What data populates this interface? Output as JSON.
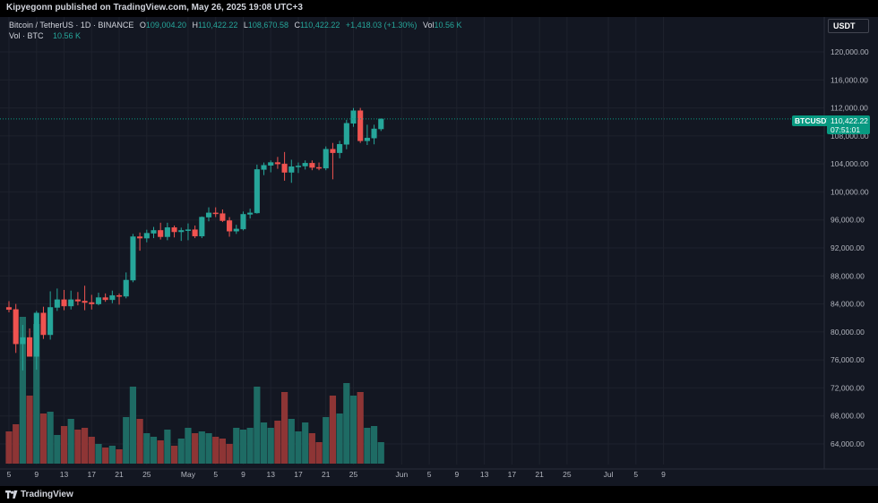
{
  "header": {
    "publish_line": "Kipyegonn published on TradingView.com, May 26, 2025 19:08 UTC+3"
  },
  "legend": {
    "symbol_title": "Bitcoin / TetherUS · 1D · BINANCE",
    "open_label": "O",
    "open_value": "109,004.20",
    "high_label": "H",
    "high_value": "110,422.22",
    "low_label": "L",
    "low_value": "108,670.58",
    "close_label": "C",
    "close_value": "110,422.22",
    "change_value": "+1,418.03 (+1.30%)",
    "vol_label": "Vol",
    "vol_value": "10.56 K",
    "vol_row_label": "Vol · BTC",
    "vol_row_value": "10.56 K"
  },
  "currency_button": "USDT",
  "last_price": {
    "symbol": "BTCUSDT",
    "price": "110,422.22",
    "countdown": "07:51:01"
  },
  "footer": {
    "logo_text": "TradingView"
  },
  "colors": {
    "background": "#131722",
    "up": "#26a69a",
    "down": "#ef5350",
    "grid": "#1e222d",
    "vol_up": "#1e6b64",
    "vol_down": "#8e3535"
  },
  "chart_data": {
    "type": "candlestick",
    "ylim": [
      60000,
      124000
    ],
    "y_ticks": [
      "120,000.00",
      "116,000.00",
      "112,000.00",
      "108,000.00",
      "104,000.00",
      "100,000.00",
      "96,000.00",
      "92,000.00",
      "88,000.00",
      "84,000.00",
      "80,000.00",
      "76,000.00",
      "72,000.00",
      "68,000.00",
      "64,000.00"
    ],
    "y_tick_values": [
      120000,
      116000,
      112000,
      108000,
      104000,
      100000,
      96000,
      92000,
      88000,
      84000,
      80000,
      76000,
      72000,
      68000,
      64000
    ],
    "x_tick_labels": [
      "5",
      "9",
      "13",
      "17",
      "21",
      "25",
      "May",
      "5",
      "9",
      "13",
      "17",
      "21",
      "25",
      "Jun",
      "5",
      "9",
      "13",
      "17",
      "21",
      "25",
      "Jul",
      "5",
      "9"
    ],
    "x_tick_day_index": [
      0,
      4,
      8,
      12,
      16,
      20,
      26,
      30,
      34,
      38,
      42,
      46,
      50,
      57,
      61,
      65,
      69,
      73,
      77,
      81,
      87,
      91,
      95
    ],
    "last_price_value": 110422.22,
    "candles": [
      {
        "o": 83500,
        "h": 84400,
        "l": 82800,
        "c": 83200,
        "v": 0.18
      },
      {
        "o": 83200,
        "h": 84000,
        "l": 77000,
        "c": 78300,
        "v": 0.22
      },
      {
        "o": 78300,
        "h": 81000,
        "l": 74500,
        "c": 79200,
        "v": 0.82
      },
      {
        "o": 79200,
        "h": 80500,
        "l": 76500,
        "c": 76500,
        "v": 0.38
      },
      {
        "o": 76500,
        "h": 83000,
        "l": 74600,
        "c": 82700,
        "v": 0.78
      },
      {
        "o": 82700,
        "h": 83600,
        "l": 79000,
        "c": 79600,
        "v": 0.28
      },
      {
        "o": 79600,
        "h": 85800,
        "l": 78900,
        "c": 83500,
        "v": 0.29
      },
      {
        "o": 83500,
        "h": 86200,
        "l": 83000,
        "c": 84600,
        "v": 0.16
      },
      {
        "o": 84600,
        "h": 86000,
        "l": 83100,
        "c": 83700,
        "v": 0.21
      },
      {
        "o": 83700,
        "h": 85900,
        "l": 83200,
        "c": 84600,
        "v": 0.25
      },
      {
        "o": 84600,
        "h": 85700,
        "l": 83800,
        "c": 84400,
        "v": 0.19
      },
      {
        "o": 84400,
        "h": 86600,
        "l": 83100,
        "c": 84200,
        "v": 0.2
      },
      {
        "o": 84200,
        "h": 85300,
        "l": 83200,
        "c": 84000,
        "v": 0.15
      },
      {
        "o": 84000,
        "h": 85600,
        "l": 83800,
        "c": 84900,
        "v": 0.11
      },
      {
        "o": 84900,
        "h": 85500,
        "l": 84300,
        "c": 84600,
        "v": 0.09
      },
      {
        "o": 84600,
        "h": 85900,
        "l": 84100,
        "c": 85200,
        "v": 0.1
      },
      {
        "o": 85200,
        "h": 85500,
        "l": 83900,
        "c": 85100,
        "v": 0.08
      },
      {
        "o": 85100,
        "h": 88500,
        "l": 84800,
        "c": 87400,
        "v": 0.26
      },
      {
        "o": 87400,
        "h": 94000,
        "l": 87100,
        "c": 93600,
        "v": 0.43
      },
      {
        "o": 93600,
        "h": 94200,
        "l": 91600,
        "c": 93400,
        "v": 0.25
      },
      {
        "o": 93400,
        "h": 94600,
        "l": 92800,
        "c": 94100,
        "v": 0.17
      },
      {
        "o": 94100,
        "h": 95000,
        "l": 93400,
        "c": 94500,
        "v": 0.15
      },
      {
        "o": 94500,
        "h": 95600,
        "l": 93200,
        "c": 93600,
        "v": 0.13
      },
      {
        "o": 93600,
        "h": 95600,
        "l": 93100,
        "c": 94900,
        "v": 0.19
      },
      {
        "o": 94900,
        "h": 95200,
        "l": 93500,
        "c": 94300,
        "v": 0.1
      },
      {
        "o": 94300,
        "h": 94900,
        "l": 93000,
        "c": 94500,
        "v": 0.14
      },
      {
        "o": 94500,
        "h": 95500,
        "l": 93100,
        "c": 94600,
        "v": 0.2
      },
      {
        "o": 94600,
        "h": 95200,
        "l": 93400,
        "c": 93700,
        "v": 0.17
      },
      {
        "o": 93700,
        "h": 96500,
        "l": 93400,
        "c": 96400,
        "v": 0.18
      },
      {
        "o": 96400,
        "h": 97800,
        "l": 95800,
        "c": 97000,
        "v": 0.17
      },
      {
        "o": 97000,
        "h": 97800,
        "l": 96400,
        "c": 96900,
        "v": 0.15
      },
      {
        "o": 96900,
        "h": 97500,
        "l": 95700,
        "c": 95900,
        "v": 0.14
      },
      {
        "o": 95900,
        "h": 96400,
        "l": 93600,
        "c": 94400,
        "v": 0.11
      },
      {
        "o": 94400,
        "h": 95300,
        "l": 94000,
        "c": 94700,
        "v": 0.2
      },
      {
        "o": 94700,
        "h": 97200,
        "l": 94500,
        "c": 96800,
        "v": 0.19
      },
      {
        "o": 96800,
        "h": 97600,
        "l": 96200,
        "c": 97000,
        "v": 0.2
      },
      {
        "o": 97000,
        "h": 103900,
        "l": 96900,
        "c": 103200,
        "v": 0.43
      },
      {
        "o": 103200,
        "h": 104200,
        "l": 102400,
        "c": 103800,
        "v": 0.23
      },
      {
        "o": 103800,
        "h": 104500,
        "l": 102800,
        "c": 104200,
        "v": 0.2
      },
      {
        "o": 104200,
        "h": 105000,
        "l": 103300,
        "c": 104000,
        "v": 0.24
      },
      {
        "o": 104000,
        "h": 105700,
        "l": 101600,
        "c": 102800,
        "v": 0.4
      },
      {
        "o": 102800,
        "h": 104600,
        "l": 101300,
        "c": 103600,
        "v": 0.25
      },
      {
        "o": 103600,
        "h": 104200,
        "l": 102700,
        "c": 103700,
        "v": 0.18
      },
      {
        "o": 103700,
        "h": 104500,
        "l": 103200,
        "c": 104100,
        "v": 0.23
      },
      {
        "o": 104100,
        "h": 104500,
        "l": 103100,
        "c": 103500,
        "v": 0.17
      },
      {
        "o": 103500,
        "h": 104200,
        "l": 103100,
        "c": 103400,
        "v": 0.12
      },
      {
        "o": 103400,
        "h": 106500,
        "l": 103100,
        "c": 106100,
        "v": 0.26
      },
      {
        "o": 106100,
        "h": 107000,
        "l": 101800,
        "c": 105600,
        "v": 0.38
      },
      {
        "o": 105600,
        "h": 107300,
        "l": 104800,
        "c": 106800,
        "v": 0.28
      },
      {
        "o": 106800,
        "h": 110300,
        "l": 106100,
        "c": 109800,
        "v": 0.45
      },
      {
        "o": 109800,
        "h": 112000,
        "l": 109300,
        "c": 111600,
        "v": 0.38
      },
      {
        "o": 111600,
        "h": 112000,
        "l": 107000,
        "c": 107300,
        "v": 0.4
      },
      {
        "o": 107300,
        "h": 109600,
        "l": 106700,
        "c": 107700,
        "v": 0.2
      },
      {
        "o": 107700,
        "h": 109600,
        "l": 106800,
        "c": 109000,
        "v": 0.21
      },
      {
        "o": 109000,
        "h": 110500,
        "l": 108700,
        "c": 110422,
        "v": 0.12
      }
    ]
  }
}
